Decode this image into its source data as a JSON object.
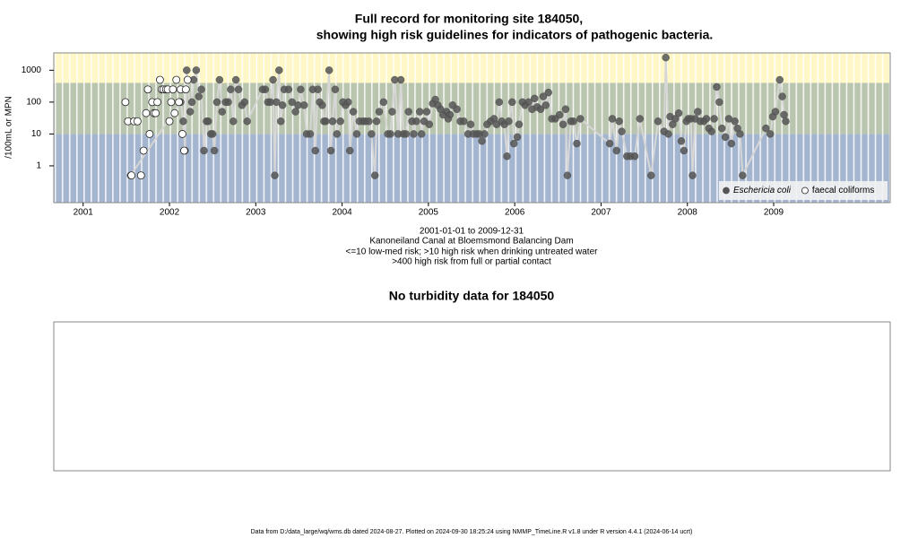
{
  "chart_data": [
    {
      "type": "scatter",
      "title": "Full record for monitoring site 184050,",
      "subtitle": "showing high risk guidelines for indicators of pathogenic bacteria.",
      "y_label": "/100mL or MPN",
      "captions": [
        "2001-01-01 to 2009-12-31",
        "Kanoneiland Canal at Bloemsmond Balancing Dam",
        "<=10 low-med risk; >10 high risk when drinking untreated water",
        ">400 high risk from full or partial contact"
      ],
      "log_y": true,
      "xlim": [
        2000.66,
        2010.35
      ],
      "xticks": [
        2001,
        2002,
        2003,
        2004,
        2005,
        2006,
        2007,
        2008,
        2009
      ],
      "ylim": [
        0.07,
        3500
      ],
      "yticks": [
        1,
        10,
        100,
        1000
      ],
      "bands": [
        {
          "upto": 10,
          "color": "#a4b5cf"
        },
        {
          "upto": 400,
          "color": "#b9c5ae"
        },
        {
          "color": "#fff8c6"
        }
      ],
      "legend": "bottom-right",
      "line_color": "#d6d6d6",
      "series": [
        {
          "name": "Eschericia coli",
          "color": "#555555",
          "marker": "filled",
          "connect": true,
          "x": [
            2001.55,
            2002.13,
            2002.16,
            2002.18,
            2002.2,
            2002.24,
            2002.26,
            2002.28,
            2002.31,
            2002.34,
            2002.37,
            2002.4,
            2002.43,
            2002.45,
            2002.48,
            2002.5,
            2002.52,
            2002.55,
            2002.58,
            2002.61,
            2002.65,
            2002.68,
            2002.71,
            2002.74,
            2002.77,
            2002.8,
            2002.84,
            2002.87,
            2002.9,
            2003.08,
            2003.11,
            2003.14,
            2003.17,
            2003.2,
            2003.22,
            2003.24,
            2003.27,
            2003.29,
            2003.31,
            2003.33,
            2003.38,
            2003.42,
            2003.46,
            2003.49,
            2003.52,
            2003.56,
            2003.59,
            2003.63,
            2003.66,
            2003.69,
            2003.72,
            2003.74,
            2003.77,
            2003.79,
            2003.81,
            2003.85,
            2003.87,
            2003.89,
            2003.92,
            2003.94,
            2003.98,
            2004.01,
            2004.04,
            2004.07,
            2004.09,
            2004.13,
            2004.17,
            2004.2,
            2004.24,
            2004.27,
            2004.31,
            2004.34,
            2004.38,
            2004.4,
            2004.43,
            2004.48,
            2004.53,
            2004.56,
            2004.58,
            2004.61,
            2004.65,
            2004.68,
            2004.71,
            2004.74,
            2004.77,
            2004.81,
            2004.83,
            2004.86,
            2004.9,
            2004.92,
            2004.95,
            2004.98,
            2005.01,
            2005.05,
            2005.08,
            2005.11,
            2005.14,
            2005.17,
            2005.21,
            2005.23,
            2005.25,
            2005.28,
            2005.33,
            2005.37,
            2005.41,
            2005.46,
            2005.49,
            2005.52,
            2005.56,
            2005.59,
            2005.62,
            2005.65,
            2005.68,
            2005.72,
            2005.76,
            2005.79,
            2005.82,
            2005.85,
            2005.88,
            2005.91,
            2005.93,
            2005.97,
            2005.99,
            2006.03,
            2006.05,
            2006.09,
            2006.12,
            2006.16,
            2006.2,
            2006.23,
            2006.26,
            2006.3,
            2006.33,
            2006.36,
            2006.39,
            2006.43,
            2006.47,
            2006.52,
            2006.56,
            2006.59,
            2006.61,
            2006.65,
            2006.68,
            2006.72,
            2006.76,
            2007.1,
            2007.13,
            2007.18,
            2007.21,
            2007.24,
            2007.3,
            2007.34,
            2007.39,
            2007.45,
            2007.58,
            2007.66,
            2007.73,
            2007.75,
            2007.78,
            2007.8,
            2007.83,
            2007.86,
            2007.9,
            2007.93,
            2007.96,
            2007.99,
            2008.01,
            2008.04,
            2008.06,
            2008.09,
            2008.12,
            2008.15,
            2008.19,
            2008.22,
            2008.25,
            2008.28,
            2008.31,
            2008.34,
            2008.37,
            2008.4,
            2008.44,
            2008.48,
            2008.51,
            2008.55,
            2008.58,
            2008.61,
            2008.64,
            2008.91,
            2008.96,
            2008.99,
            2009.02,
            2009.07,
            2009.1,
            2009.12,
            2009.14
          ],
          "values": [
            0.5,
            100,
            25,
            3,
            1000,
            50,
            100,
            500,
            1000,
            150,
            250,
            3,
            25,
            25,
            10,
            10,
            3,
            100,
            500,
            50,
            100,
            100,
            250,
            25,
            500,
            250,
            80,
            100,
            25,
            250,
            250,
            100,
            100,
            500,
            0.5,
            100,
            1000,
            25,
            80,
            250,
            250,
            100,
            50,
            80,
            250,
            80,
            10,
            10,
            250,
            3,
            250,
            100,
            80,
            25,
            25,
            1000,
            3,
            25,
            250,
            10,
            25,
            100,
            80,
            100,
            3,
            50,
            10,
            25,
            25,
            25,
            25,
            10,
            0.5,
            25,
            50,
            100,
            10,
            10,
            50,
            500,
            10,
            500,
            10,
            10,
            50,
            25,
            10,
            25,
            50,
            10,
            25,
            50,
            20,
            90,
            120,
            80,
            60,
            40,
            50,
            30,
            40,
            80,
            60,
            25,
            25,
            10,
            20,
            10,
            10,
            10,
            6,
            10,
            20,
            25,
            30,
            20,
            100,
            25,
            20,
            2,
            25,
            100,
            5,
            8,
            20,
            100,
            80,
            100,
            60,
            130,
            70,
            60,
            150,
            80,
            200,
            30,
            30,
            40,
            20,
            60,
            0.5,
            25,
            25,
            5,
            30,
            5,
            30,
            3,
            25,
            12,
            2,
            2,
            2,
            30,
            0.5,
            25,
            12,
            2500,
            10,
            35,
            20,
            30,
            45,
            6,
            3,
            25,
            30,
            30,
            0.5,
            30,
            50,
            25,
            25,
            30,
            15,
            12,
            30,
            300,
            100,
            15,
            8,
            30,
            5,
            25,
            15,
            10,
            0.5,
            15,
            10,
            35,
            50,
            500,
            150,
            40,
            25
          ]
        },
        {
          "name": "faecal coliforms",
          "color": "#222222",
          "marker": "open",
          "connect": false,
          "x": [
            2001.49,
            2001.52,
            2001.56,
            2001.59,
            2001.63,
            2001.67,
            2001.7,
            2001.73,
            2001.75,
            2001.77,
            2001.8,
            2001.82,
            2001.84,
            2001.86,
            2001.89,
            2001.91,
            2001.93,
            2001.96,
            2001.98,
            2002.0,
            2002.02,
            2002.04,
            2002.06,
            2002.08,
            2002.11,
            2002.13,
            2002.15,
            2002.17,
            2002.19,
            2002.21
          ],
          "values": [
            100,
            25,
            0.5,
            25,
            25,
            0.5,
            3,
            45,
            250,
            10,
            100,
            45,
            45,
            100,
            500,
            250,
            250,
            250,
            250,
            25,
            100,
            250,
            45,
            500,
            100,
            250,
            10,
            3,
            250,
            500
          ]
        }
      ]
    },
    {
      "type": "empty",
      "title": "No turbidity data for 184050"
    }
  ],
  "footer": "Data from D:/data_large/wq/wms.db dated 2024-08-27. Plotted on 2024-09-30 18:25:24 using NMMP_TimeLine.R v1.8 under R version 4.4.1 (2024-06-14 ucrt)"
}
